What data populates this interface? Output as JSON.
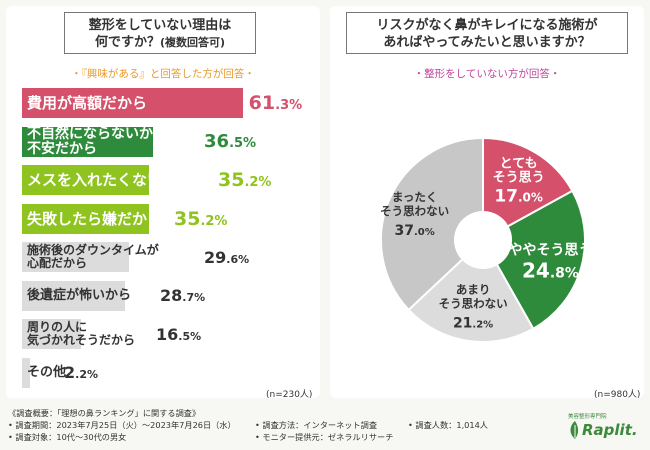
{
  "left": {
    "title_line1": "整形をしていない理由は",
    "title_line2": "何ですか？",
    "title_suffix": "(複数回答可)",
    "subtitle": "・『興味がある』と回答した方が回答・",
    "n_label": "(n=230人)"
  },
  "right": {
    "title_line1": "リスクがなく鼻がキレイになる施術が",
    "title_line2": "あればやってみたいと思いますか？",
    "subtitle": "・整形をしていない方が回答・",
    "n_label": "(n=980人)"
  },
  "colors": {
    "red": "#d5506b",
    "green_dark": "#2e8b3c",
    "green_light": "#8fc31f",
    "gray": "#c7c7c7",
    "gray_light": "#dcdcdc",
    "orange": "#e89a2a",
    "pink_text": "#c0449a"
  },
  "chart_data": [
    {
      "type": "bar",
      "orientation": "horizontal",
      "title": "整形をしていない理由は何ですか？(複数回答可)",
      "subtitle": "『興味がある』と回答した方が回答",
      "unit": "%",
      "xlim": [
        0,
        100
      ],
      "categories": [
        "費用が高額だから",
        "不自然にならないか不安だから",
        "メスを入れたくないから",
        "失敗したら嫌だから",
        "施術後のダウンタイムが心配だから",
        "後遺症が怖いから",
        "周りの人に気づかれそうだから",
        "その他"
      ],
      "label_lines": [
        [
          "費用が高額だから"
        ],
        [
          "不自然にならないか",
          "不安だから"
        ],
        [
          "メスを入れたくないから"
        ],
        [
          "失敗したら嫌だから"
        ],
        [
          "施術後のダウンタイムが",
          "心配だから"
        ],
        [
          "後遺症が怖いから"
        ],
        [
          "周りの人に",
          "気づかれそうだから"
        ],
        [
          "その他"
        ]
      ],
      "values": [
        61.3,
        36.5,
        35.2,
        35.2,
        29.6,
        28.7,
        16.5,
        2.2
      ],
      "value_labels": [
        [
          "61",
          ".3%"
        ],
        [
          "36",
          ".5%"
        ],
        [
          "35",
          ".2%"
        ],
        [
          "35",
          ".2%"
        ],
        [
          "29",
          ".6%"
        ],
        [
          "28",
          ".7%"
        ],
        [
          "16",
          ".5%"
        ],
        [
          "2",
          ".2%"
        ]
      ],
      "n": "n=230人"
    },
    {
      "type": "pie",
      "title": "リスクがなく鼻がキレイになる施術があればやってみたいと思いますか？",
      "subtitle": "整形をしていない方が回答",
      "unit": "%",
      "categories": [
        "とてもそう思う",
        "ややそう思う",
        "あまりそう思わない",
        "まったくそう思わない"
      ],
      "label_lines": [
        [
          "とても",
          "そう思う"
        ],
        [
          "ややそう思う"
        ],
        [
          "あまり",
          "そう思わない"
        ],
        [
          "まったく",
          "そう思わない"
        ]
      ],
      "values": [
        17.0,
        24.8,
        21.2,
        37.0
      ],
      "value_labels": [
        [
          "17",
          ".0%"
        ],
        [
          "24",
          ".8%"
        ],
        [
          "21",
          ".2%"
        ],
        [
          "37",
          ".0%"
        ]
      ],
      "n": "n=980人"
    }
  ],
  "footer": {
    "col1": [
      "《調査概要：「理想の鼻ランキング」に関する調査》",
      "• 調査期間：2023年7月25日（火）〜2023年7月26日（水）",
      "• 調査対象：10代〜30代の男女"
    ],
    "col2": [
      "• 調査方法：インターネット調査",
      "• モニター提供元：ゼネラルリサーチ"
    ],
    "col3": [
      "• 調査人数：1,014人"
    ],
    "logo_tag": "美容整形専門院",
    "logo_text": "Raplit."
  }
}
